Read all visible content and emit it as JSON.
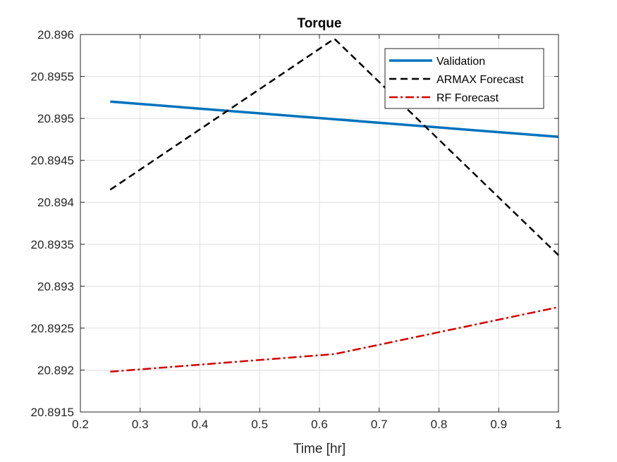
{
  "chart_data": {
    "type": "line",
    "title": "Torque",
    "xlabel": "Time [hr]",
    "ylabel": "",
    "xlim": [
      0.2,
      1.0
    ],
    "ylim": [
      20.8915,
      20.896
    ],
    "x_ticks": [
      "0.2",
      "0.3",
      "0.4",
      "0.5",
      "0.6",
      "0.7",
      "0.8",
      "0.9",
      "1"
    ],
    "x_tick_values": [
      0.2,
      0.3,
      0.4,
      0.5,
      0.6,
      0.7,
      0.8,
      0.9,
      1.0
    ],
    "y_ticks": [
      "20.8915",
      "20.892",
      "20.8925",
      "20.893",
      "20.8935",
      "20.894",
      "20.8945",
      "20.895",
      "20.8955",
      "20.896"
    ],
    "y_tick_values": [
      20.8915,
      20.892,
      20.8925,
      20.893,
      20.8935,
      20.894,
      20.8945,
      20.895,
      20.8955,
      20.896
    ],
    "grid": true,
    "legend_position": "top-right",
    "series": [
      {
        "name": "Validation",
        "x": [
          0.25,
          1.0
        ],
        "y": [
          20.8952,
          20.89478
        ],
        "color": "#0072BD",
        "style": "solid"
      },
      {
        "name": "ARMAX Forecast",
        "x": [
          0.25,
          0.625,
          1.0
        ],
        "y": [
          20.89415,
          20.89595,
          20.89337
        ],
        "color": "#000000",
        "style": "dashed"
      },
      {
        "name": "RF Forecast",
        "x": [
          0.25,
          0.625,
          1.0
        ],
        "y": [
          20.89198,
          20.89219,
          20.89275
        ],
        "color": "#D40000",
        "style": "dashdot"
      }
    ]
  }
}
